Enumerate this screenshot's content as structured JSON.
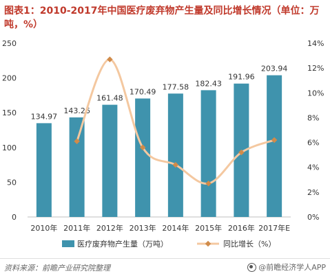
{
  "title": "图表1：2010-2017年中国医疗废弃物产生量及同比增长情况（单位：万吨，%）",
  "source": "资料来源：前瞻产业研究院整理",
  "brand": "@前瞻经济学人APP",
  "colors": {
    "bar": "#3f93ad",
    "line": "#f4c8a0",
    "marker": "#d08b4a",
    "title": "#c0392b"
  },
  "chart_data": {
    "type": "bar+line",
    "categories": [
      "2010年",
      "2011年",
      "2012年",
      "2013年",
      "2014年",
      "2015年",
      "2016年",
      "2017年E"
    ],
    "series": [
      {
        "name": "医疗废弃物产生量（万吨）",
        "type": "bar",
        "axis": "left",
        "values": [
          134.97,
          143.26,
          161.48,
          170.49,
          177.58,
          182.43,
          191.96,
          203.94
        ],
        "labels": [
          "134.97",
          "143.26",
          "161.48",
          "170.49",
          "177.58",
          "182.43",
          "191.96",
          "203.94"
        ]
      },
      {
        "name": "同比增长（%）",
        "type": "line",
        "axis": "right",
        "values": [
          null,
          6.1,
          12.7,
          5.6,
          4.2,
          2.7,
          5.2,
          6.2
        ]
      }
    ],
    "left_axis": {
      "min": 0,
      "max": 250,
      "ticks": [
        "0",
        "50",
        "100",
        "150",
        "200",
        "250"
      ]
    },
    "right_axis": {
      "min": 0,
      "max": 14,
      "ticks": [
        "0%",
        "2%",
        "4%",
        "6%",
        "8%",
        "10%",
        "12%",
        "14%"
      ]
    },
    "legend": [
      "医疗废弃物产生量（万吨）",
      "同比增长（%）"
    ]
  }
}
